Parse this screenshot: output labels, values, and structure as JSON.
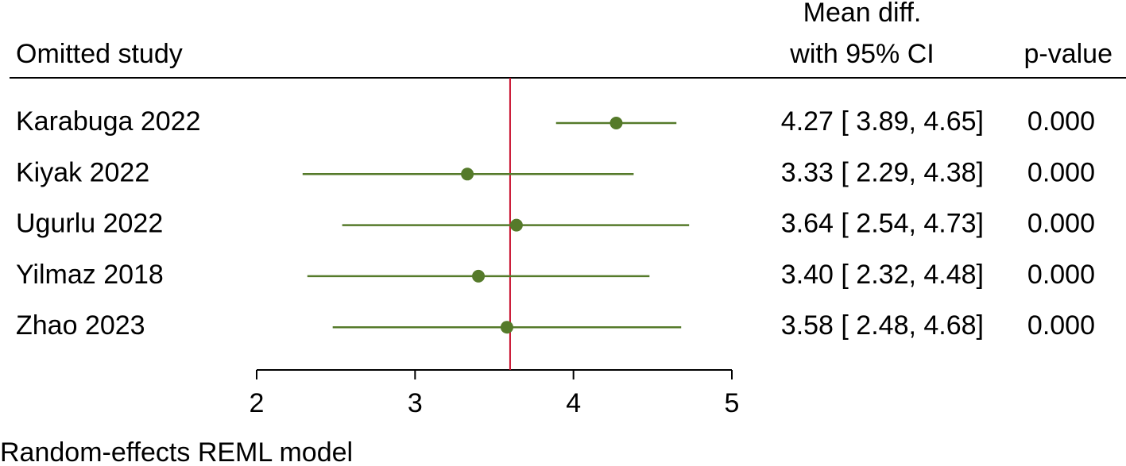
{
  "chart_data": {
    "type": "forest",
    "header": {
      "study": "Omitted study",
      "effect_line1": "Mean diff.",
      "effect_line2": "with 95% CI",
      "p": "p-value"
    },
    "categories": [
      "Karabuga 2022",
      "Kiyak 2022",
      "Ugurlu 2022",
      "Yilmaz 2018",
      "Zhao 2023"
    ],
    "values": [
      4.27,
      3.33,
      3.64,
      3.4,
      3.58
    ],
    "lower": [
      3.89,
      2.29,
      2.54,
      2.32,
      2.48
    ],
    "upper": [
      4.65,
      4.38,
      4.73,
      4.48,
      4.68
    ],
    "value_labels": [
      "4.27 [ 3.89, 4.65]",
      "3.33 [ 2.29, 4.38]",
      "3.64 [ 2.54, 4.73]",
      "3.40 [ 2.32, 4.48]",
      "3.58 [ 2.48, 4.68]"
    ],
    "p_values": [
      "0.000",
      "0.000",
      "0.000",
      "0.000",
      "0.000"
    ],
    "color": "#557a2a",
    "reference_line": 3.6,
    "reference_color": "#c8102e",
    "xlim": [
      2,
      5
    ],
    "xticks": [
      2,
      3,
      4,
      5
    ],
    "note": "Random-effects REML model"
  }
}
